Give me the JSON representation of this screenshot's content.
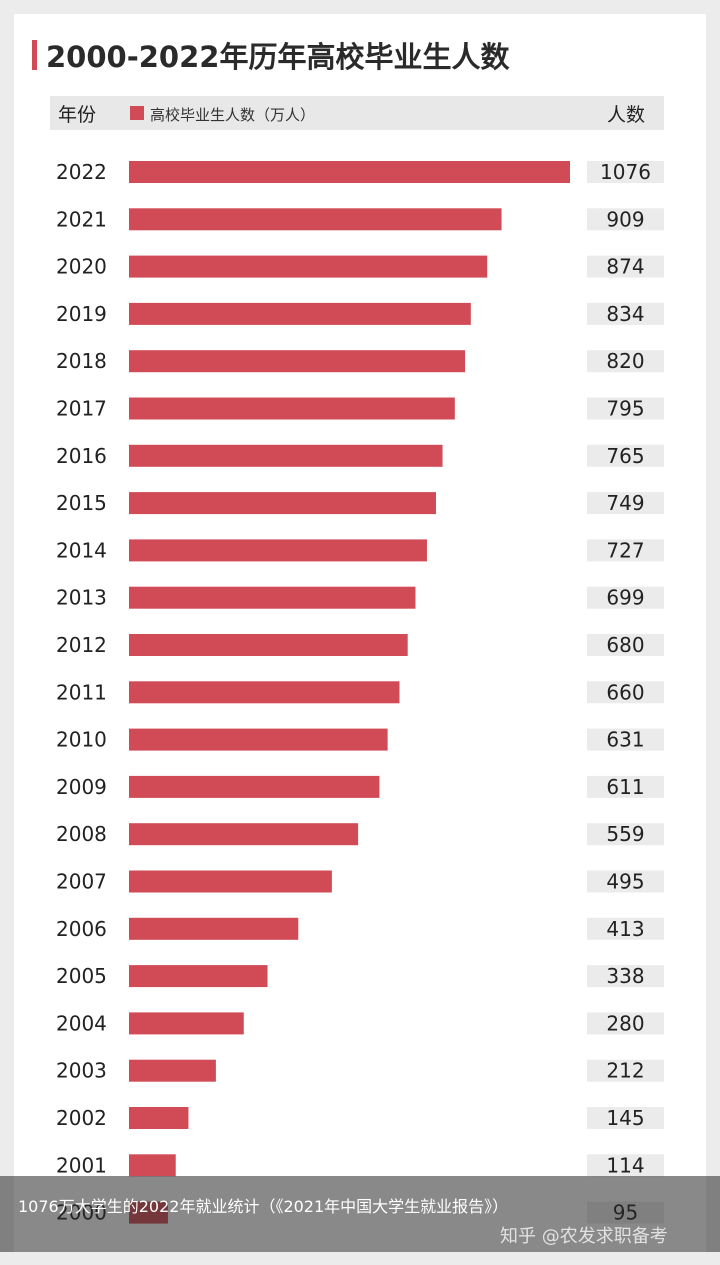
{
  "colors": {
    "bar": "#d14b56",
    "accent": "#d14b56",
    "label_bg": "#ebebeb",
    "text": "#222222"
  },
  "header": {
    "year_label": "年份",
    "legend_label": "高校毕业生人数（万人）",
    "count_label": "人数"
  },
  "caption": {
    "text": "1076万大学生的2022年就业统计（《2021年中国大学生就业报告》）",
    "watermark": "知乎 @农发求职备考"
  },
  "chart_data": {
    "type": "bar",
    "orientation": "horizontal",
    "title": "2000-2022年历年高校毕业生人数",
    "xlabel": "",
    "ylabel": "",
    "xlim": [
      0,
      1076
    ],
    "grid": false,
    "legend_position": "top-left",
    "categories": [
      "2022",
      "2021",
      "2020",
      "2019",
      "2018",
      "2017",
      "2016",
      "2015",
      "2014",
      "2013",
      "2012",
      "2011",
      "2010",
      "2009",
      "2008",
      "2007",
      "2006",
      "2005",
      "2004",
      "2003",
      "2002",
      "2001",
      "2000"
    ],
    "series": [
      {
        "name": "高校毕业生人数（万人）",
        "values": [
          1076,
          909,
          874,
          834,
          820,
          795,
          765,
          749,
          727,
          699,
          680,
          660,
          631,
          611,
          559,
          495,
          413,
          338,
          280,
          212,
          145,
          114,
          95
        ]
      }
    ]
  }
}
